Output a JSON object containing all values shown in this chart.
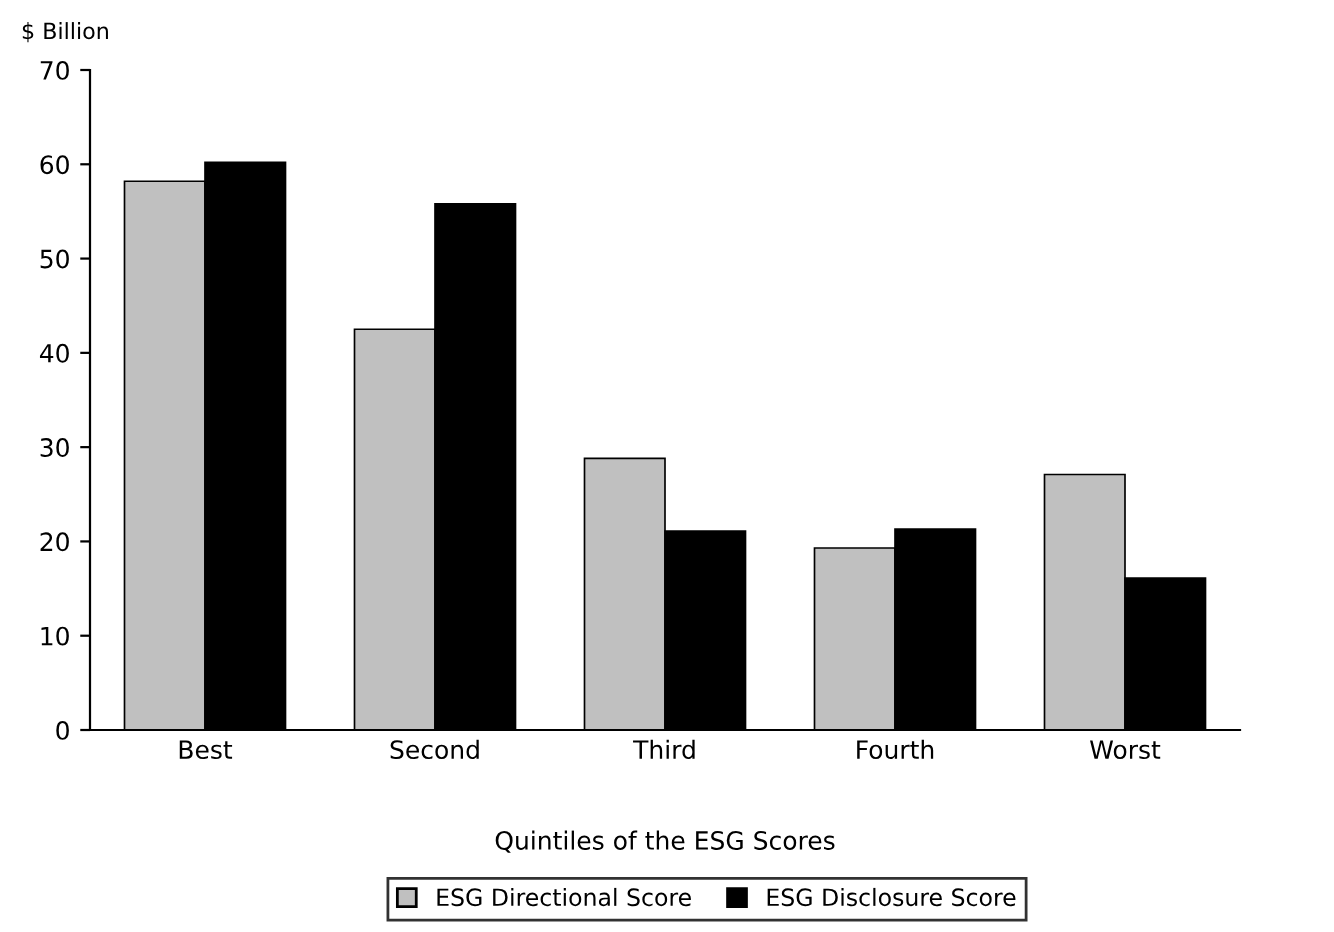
{
  "chart_data": {
    "type": "bar",
    "ylabel": "$ Billion",
    "xlabel": "Quintiles of the ESG Scores",
    "categories": [
      "Best",
      "Second",
      "Third",
      "Fourth",
      "Worst"
    ],
    "series": [
      {
        "name": "ESG Directional Score",
        "color": "#c0c0c0",
        "values": [
          58.2,
          42.5,
          28.8,
          19.3,
          27.1
        ]
      },
      {
        "name": "ESG Disclosure Score",
        "color": "#000000",
        "values": [
          60.2,
          55.8,
          21.1,
          21.3,
          16.1
        ]
      }
    ],
    "ylim": [
      0,
      70
    ],
    "yticks": [
      0,
      10,
      20,
      30,
      40,
      50,
      60,
      70
    ],
    "grid": false,
    "legend": "bottom"
  }
}
